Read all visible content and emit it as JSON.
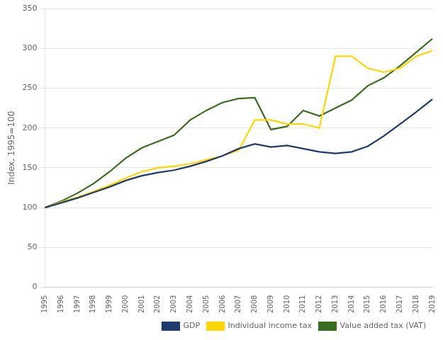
{
  "chart_data": {
    "type": "line",
    "ylabel": "Index, 1995=100",
    "categories": [
      "1995",
      "1996",
      "1997",
      "1998",
      "1999",
      "2000",
      "2001",
      "2002",
      "2003",
      "2004",
      "2005",
      "2006",
      "2007",
      "2008",
      "2009",
      "2010",
      "2011",
      "2012",
      "2013",
      "2014",
      "2015",
      "2016",
      "2017",
      "2018",
      "2019"
    ],
    "series": [
      {
        "name": "GDP",
        "color": "#1f3a6e",
        "values": [
          100,
          106,
          112,
          119,
          126,
          134,
          140,
          144,
          147,
          152,
          158,
          165,
          174,
          180,
          176,
          178,
          174,
          170,
          168,
          170,
          177,
          190,
          205,
          220,
          236
        ]
      },
      {
        "name": "Individual income tax",
        "color": "#ffd700",
        "values": [
          100,
          107,
          113,
          120,
          128,
          137,
          145,
          150,
          152,
          155,
          160,
          165,
          172,
          210,
          210,
          205,
          205,
          200,
          290,
          290,
          275,
          270,
          275,
          290,
          297
        ]
      },
      {
        "name": "Value added tax (VAT)",
        "color": "#3a6e1f",
        "values": [
          100,
          108,
          118,
          130,
          145,
          162,
          175,
          183,
          191,
          210,
          222,
          232,
          237,
          238,
          198,
          202,
          222,
          215,
          225,
          235,
          253,
          263,
          278,
          295,
          312
        ]
      }
    ],
    "ylim": [
      0,
      350
    ],
    "yticks": [
      0,
      50,
      100,
      150,
      200,
      250,
      300,
      350
    ],
    "grid": "y",
    "legend": "lower right"
  }
}
